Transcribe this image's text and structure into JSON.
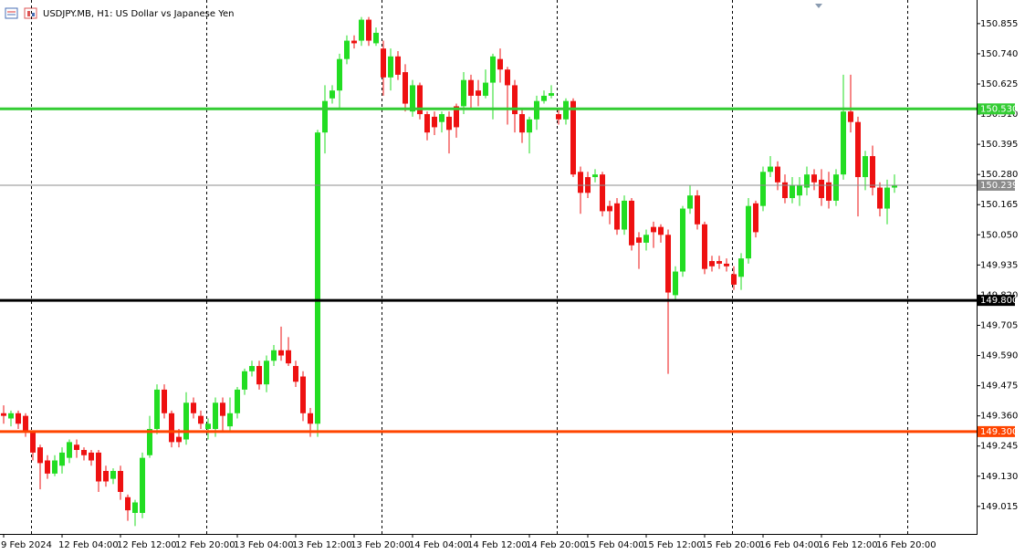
{
  "chart_data": {
    "type": "candlestick",
    "title": "USDJPY.MB, H1:  US Dollar vs Japanese Yen",
    "categories": [
      "9 Feb 2024",
      null,
      null,
      null,
      null,
      null,
      null,
      null,
      "12 Feb 04:00",
      null,
      null,
      null,
      null,
      null,
      null,
      null,
      "12 Feb 12:00",
      null,
      null,
      null,
      null,
      null,
      null,
      null,
      "12 Feb 20:00",
      null,
      null,
      null,
      null,
      null,
      null,
      null,
      "13 Feb 04:00",
      null,
      null,
      null,
      null,
      null,
      null,
      null,
      "13 Feb 12:00",
      null,
      null,
      null,
      null,
      null,
      null,
      null,
      "13 Feb 20:00",
      null,
      null,
      null,
      null,
      null,
      null,
      null,
      "14 Feb 04:00",
      null,
      null,
      null,
      null,
      null,
      null,
      null,
      "14 Feb 12:00",
      null,
      null,
      null,
      null,
      null,
      null,
      null,
      "14 Feb 20:00",
      null,
      null,
      null,
      null,
      null,
      null,
      null,
      "15 Feb 04:00",
      null,
      null,
      null,
      null,
      null,
      null,
      null,
      "15 Feb 12:00",
      null,
      null,
      null,
      null,
      null,
      null,
      null,
      "15 Feb 20:00",
      null,
      null,
      null,
      null,
      null,
      null,
      null,
      "16 Feb 04:00",
      null,
      null,
      null,
      null,
      null,
      null,
      null,
      "16 Feb 12:00",
      null,
      null,
      null,
      null,
      null,
      null,
      null,
      "16 Feb 20:00",
      null,
      null
    ],
    "open": [
      149.37,
      149.35,
      149.37,
      149.36,
      149.3,
      149.24,
      149.19,
      149.14,
      149.17,
      149.2,
      149.25,
      149.23,
      149.22,
      149.22,
      149.15,
      149.12,
      149.15,
      149.05,
      148.99,
      148.99,
      149.21,
      149.31,
      149.46,
      149.37,
      149.28,
      149.27,
      149.41,
      149.36,
      149.31,
      149.31,
      149.41,
      149.32,
      149.37,
      149.46,
      149.53,
      149.55,
      149.48,
      149.57,
      149.61,
      149.61,
      149.55,
      149.51,
      149.37,
      149.33,
      150.44,
      150.57,
      150.6,
      150.72,
      150.79,
      150.79,
      150.87,
      150.78,
      150.76,
      150.65,
      150.73,
      150.67,
      150.52,
      150.62,
      150.51,
      150.5,
      150.48,
      150.5,
      150.54,
      150.54,
      150.64,
      150.6,
      150.58,
      150.63,
      150.72,
      150.68,
      150.62,
      150.51,
      150.44,
      150.49,
      150.56,
      150.58,
      150.51,
      150.49,
      150.56,
      150.29,
      150.27,
      150.27,
      150.28,
      150.16,
      150.17,
      150.07,
      150.18,
      150.04,
      150.02,
      150.08,
      150.08,
      150.05,
      149.82,
      149.91,
      150.15,
      150.2,
      150.09,
      149.95,
      149.95,
      149.94,
      149.9,
      149.89,
      149.96,
      150.17,
      150.16,
      150.29,
      150.31,
      150.25,
      150.19,
      150.2,
      150.23,
      150.28,
      150.26,
      150.25,
      150.18,
      150.28,
      150.52,
      150.48,
      150.27,
      150.35,
      150.23,
      150.15,
      150.23
    ],
    "high": [
      149.4,
      149.38,
      149.38,
      149.37,
      149.3,
      149.25,
      149.21,
      149.21,
      149.24,
      149.27,
      149.27,
      149.24,
      149.23,
      149.23,
      149.17,
      149.16,
      149.17,
      149.06,
      149.04,
      149.22,
      149.36,
      149.48,
      149.48,
      149.38,
      149.31,
      149.45,
      149.43,
      149.38,
      149.35,
      149.43,
      149.43,
      149.43,
      149.47,
      149.54,
      149.57,
      149.57,
      149.59,
      149.63,
      149.7,
      149.66,
      149.57,
      149.53,
      149.39,
      150.45,
      150.62,
      150.62,
      150.74,
      150.81,
      150.81,
      150.88,
      150.88,
      150.84,
      150.79,
      150.76,
      150.75,
      150.7,
      150.64,
      150.63,
      150.52,
      150.52,
      150.52,
      150.52,
      150.55,
      150.67,
      150.66,
      150.64,
      150.68,
      150.74,
      150.76,
      150.69,
      150.64,
      150.53,
      150.5,
      150.58,
      150.6,
      150.62,
      150.53,
      150.57,
      150.57,
      150.31,
      150.29,
      150.3,
      150.29,
      150.18,
      150.19,
      150.2,
      150.19,
      150.06,
      150.07,
      150.1,
      150.09,
      150.07,
      149.93,
      150.16,
      150.24,
      150.22,
      150.1,
      149.97,
      149.97,
      149.96,
      149.93,
      149.98,
      150.19,
      150.18,
      150.31,
      150.35,
      150.33,
      150.28,
      150.27,
      150.27,
      150.31,
      150.3,
      150.3,
      150.29,
      150.3,
      150.66,
      150.66,
      150.5,
      150.37,
      150.39,
      150.25,
      150.26,
      150.28
    ],
    "low": [
      149.33,
      149.32,
      149.31,
      149.28,
      149.19,
      149.08,
      149.12,
      149.13,
      149.14,
      149.18,
      149.2,
      149.19,
      149.17,
      149.07,
      149.09,
      149.1,
      149.04,
      148.96,
      148.94,
      148.97,
      149.2,
      149.29,
      149.35,
      149.24,
      149.24,
      149.25,
      149.35,
      149.31,
      149.27,
      149.28,
      149.3,
      149.3,
      149.35,
      149.44,
      149.51,
      149.46,
      149.45,
      149.55,
      149.57,
      149.55,
      149.47,
      149.34,
      149.28,
      149.28,
      150.36,
      150.55,
      150.53,
      150.7,
      150.76,
      150.77,
      150.77,
      150.77,
      150.58,
      150.6,
      150.64,
      150.52,
      150.5,
      150.49,
      150.41,
      150.43,
      150.44,
      150.36,
      150.42,
      150.51,
      150.53,
      150.54,
      150.57,
      150.49,
      150.63,
      150.47,
      150.44,
      150.4,
      150.36,
      150.45,
      150.55,
      150.57,
      150.47,
      150.47,
      150.27,
      150.13,
      150.19,
      150.25,
      150.12,
      150.09,
      150.05,
      150.05,
      149.99,
      149.92,
      149.99,
      150.0,
      150.02,
      149.52,
      149.8,
      149.89,
      150.13,
      150.07,
      149.9,
      149.91,
      149.92,
      149.91,
      149.84,
      149.84,
      149.94,
      150.04,
      150.14,
      150.27,
      150.22,
      150.17,
      150.17,
      150.16,
      150.2,
      150.22,
      150.16,
      150.15,
      150.16,
      150.26,
      150.44,
      150.12,
      150.22,
      150.2,
      150.12,
      150.09,
      150.21
    ],
    "close": [
      149.36,
      149.37,
      149.33,
      149.3,
      149.22,
      149.18,
      149.14,
      149.19,
      149.22,
      149.26,
      149.23,
      149.21,
      149.19,
      149.11,
      149.11,
      149.15,
      149.07,
      149.0,
      149.03,
      149.2,
      149.31,
      149.46,
      149.37,
      149.26,
      149.26,
      149.41,
      149.37,
      149.33,
      149.33,
      149.41,
      149.36,
      149.37,
      149.46,
      149.53,
      149.55,
      149.48,
      149.57,
      149.61,
      149.59,
      149.56,
      149.49,
      149.37,
      149.33,
      150.44,
      150.56,
      150.6,
      150.72,
      150.79,
      150.78,
      150.87,
      150.79,
      150.82,
      150.65,
      150.73,
      150.66,
      150.55,
      150.62,
      150.51,
      150.44,
      150.46,
      150.51,
      150.45,
      150.46,
      150.64,
      150.58,
      150.58,
      150.63,
      150.73,
      150.68,
      150.62,
      150.51,
      150.44,
      150.49,
      150.56,
      150.58,
      150.59,
      150.49,
      150.56,
      150.28,
      150.21,
      150.21,
      150.28,
      150.14,
      150.14,
      150.07,
      150.18,
      150.01,
      150.02,
      150.05,
      150.06,
      150.05,
      149.83,
      149.91,
      150.15,
      150.2,
      150.09,
      149.92,
      149.93,
      149.94,
      149.93,
      149.86,
      149.96,
      150.16,
      150.06,
      150.29,
      150.31,
      150.25,
      150.19,
      150.24,
      150.24,
      150.28,
      150.25,
      150.19,
      150.18,
      150.28,
      150.52,
      150.48,
      150.27,
      150.35,
      150.23,
      150.15,
      150.23,
      150.24
    ],
    "up_color": "#22dd22",
    "down_color": "#ee1111",
    "ylim": [
      148.91,
      150.945
    ],
    "yticks": [
      150.855,
      {
        "value": 150.74,
        "label": "150.740"
      },
      150.625,
      {
        "value": 150.51,
        "label": "150.510"
      },
      150.395,
      {
        "value": 150.28,
        "label": "150.280"
      },
      150.165,
      {
        "value": 150.05,
        "label": "150.050"
      },
      149.935,
      {
        "value": 149.82,
        "label": "149.820"
      },
      149.705,
      {
        "value": 149.59,
        "label": "149.590"
      },
      149.475,
      {
        "value": 149.36,
        "label": "149.360"
      },
      149.245,
      {
        "value": 149.13,
        "label": "149.130"
      },
      149.015
    ],
    "lines": [
      {
        "value": 150.53,
        "label": "150.530",
        "color": "#33cc33",
        "width": 3
      },
      {
        "value": 150.239,
        "label": "150.239",
        "color": "#8c8c8c",
        "width": 1
      },
      {
        "value": 149.8,
        "label": "149.800",
        "color": "#000000",
        "width": 3
      },
      {
        "value": 149.3,
        "label": "149.300",
        "color": "#ff4500",
        "width": 3
      }
    ]
  }
}
